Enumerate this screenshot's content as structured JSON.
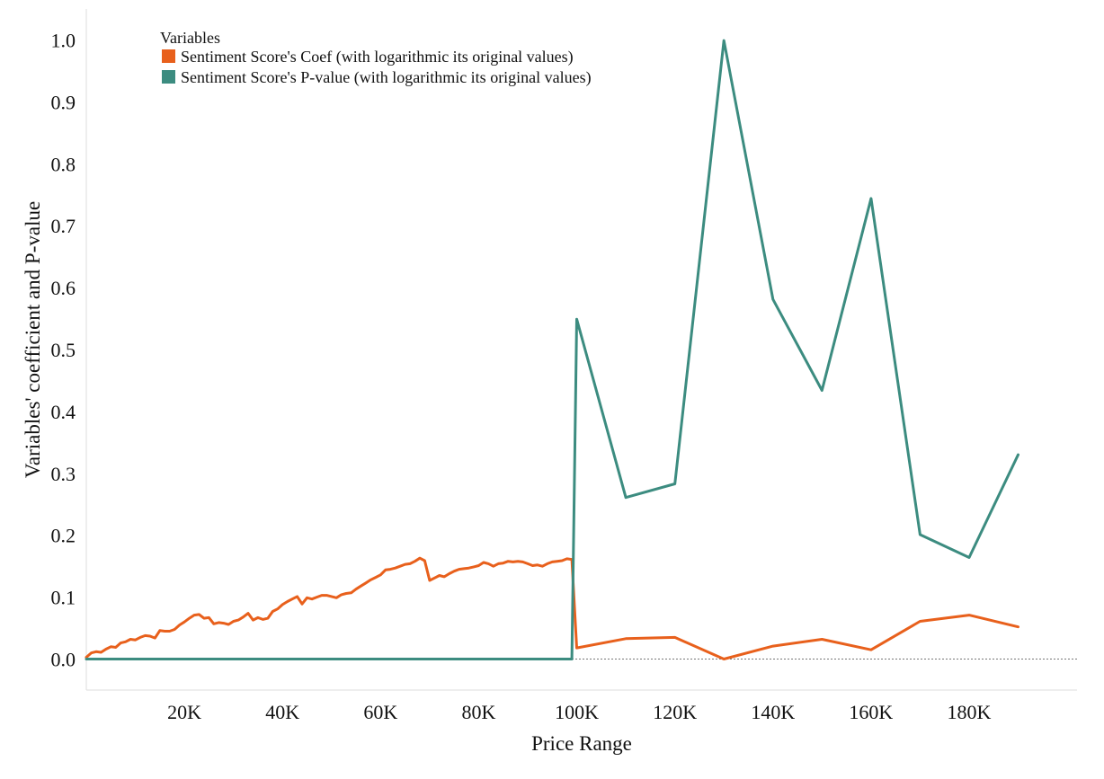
{
  "chart_data": {
    "type": "line",
    "title": "",
    "xlabel": "Price Range",
    "ylabel": "Variables' coefficient and P-value",
    "xlim": [
      0,
      202000
    ],
    "ylim": [
      -0.05,
      1.05
    ],
    "x_ticks": [
      20000,
      40000,
      60000,
      80000,
      100000,
      120000,
      140000,
      160000,
      180000
    ],
    "x_tick_labels": [
      "20K",
      "40K",
      "60K",
      "80K",
      "100K",
      "120K",
      "140K",
      "160K",
      "180K"
    ],
    "y_ticks": [
      0.0,
      0.1,
      0.2,
      0.3,
      0.4,
      0.5,
      0.6,
      0.7,
      0.8,
      0.9,
      1.0
    ],
    "y_tick_labels": [
      "0.0",
      "0.1",
      "0.2",
      "0.3",
      "0.4",
      "0.5",
      "0.6",
      "0.7",
      "0.8",
      "0.9",
      "1.0"
    ],
    "zero_line": true,
    "grid": false,
    "legend": {
      "title": "Variables",
      "position": "top-left"
    },
    "series": [
      {
        "name": "Sentiment Score's Coef (with logarithmic its original values)",
        "color": "#e8601c",
        "points": [
          [
            0,
            0.003
          ],
          [
            1000,
            0.01
          ],
          [
            2000,
            0.012
          ],
          [
            3000,
            0.011
          ],
          [
            4000,
            0.016
          ],
          [
            5000,
            0.02
          ],
          [
            6000,
            0.019
          ],
          [
            7000,
            0.026
          ],
          [
            8000,
            0.028
          ],
          [
            9000,
            0.032
          ],
          [
            10000,
            0.031
          ],
          [
            11000,
            0.035
          ],
          [
            12000,
            0.038
          ],
          [
            13000,
            0.037
          ],
          [
            14000,
            0.034
          ],
          [
            15000,
            0.046
          ],
          [
            16000,
            0.045
          ],
          [
            17000,
            0.045
          ],
          [
            18000,
            0.048
          ],
          [
            19000,
            0.055
          ],
          [
            20000,
            0.06
          ],
          [
            21000,
            0.066
          ],
          [
            22000,
            0.071
          ],
          [
            23000,
            0.072
          ],
          [
            24000,
            0.066
          ],
          [
            25000,
            0.067
          ],
          [
            26000,
            0.057
          ],
          [
            27000,
            0.059
          ],
          [
            28000,
            0.058
          ],
          [
            29000,
            0.056
          ],
          [
            30000,
            0.061
          ],
          [
            31000,
            0.063
          ],
          [
            32000,
            0.068
          ],
          [
            33000,
            0.074
          ],
          [
            34000,
            0.063
          ],
          [
            35000,
            0.067
          ],
          [
            36000,
            0.064
          ],
          [
            37000,
            0.066
          ],
          [
            38000,
            0.077
          ],
          [
            39000,
            0.081
          ],
          [
            40000,
            0.088
          ],
          [
            41000,
            0.093
          ],
          [
            42000,
            0.097
          ],
          [
            43000,
            0.101
          ],
          [
            44000,
            0.089
          ],
          [
            45000,
            0.099
          ],
          [
            46000,
            0.097
          ],
          [
            47000,
            0.1
          ],
          [
            48000,
            0.103
          ],
          [
            49000,
            0.103
          ],
          [
            50000,
            0.101
          ],
          [
            51000,
            0.099
          ],
          [
            52000,
            0.104
          ],
          [
            53000,
            0.106
          ],
          [
            54000,
            0.107
          ],
          [
            55000,
            0.113
          ],
          [
            56000,
            0.118
          ],
          [
            57000,
            0.123
          ],
          [
            58000,
            0.128
          ],
          [
            59000,
            0.132
          ],
          [
            60000,
            0.136
          ],
          [
            61000,
            0.144
          ],
          [
            62000,
            0.145
          ],
          [
            63000,
            0.147
          ],
          [
            64000,
            0.15
          ],
          [
            65000,
            0.153
          ],
          [
            66000,
            0.154
          ],
          [
            67000,
            0.158
          ],
          [
            68000,
            0.163
          ],
          [
            69000,
            0.159
          ],
          [
            70000,
            0.127
          ],
          [
            71000,
            0.131
          ],
          [
            72000,
            0.135
          ],
          [
            73000,
            0.133
          ],
          [
            74000,
            0.138
          ],
          [
            75000,
            0.142
          ],
          [
            76000,
            0.145
          ],
          [
            77000,
            0.146
          ],
          [
            78000,
            0.147
          ],
          [
            79000,
            0.149
          ],
          [
            80000,
            0.151
          ],
          [
            81000,
            0.156
          ],
          [
            82000,
            0.154
          ],
          [
            83000,
            0.15
          ],
          [
            84000,
            0.154
          ],
          [
            85000,
            0.155
          ],
          [
            86000,
            0.158
          ],
          [
            87000,
            0.157
          ],
          [
            88000,
            0.158
          ],
          [
            89000,
            0.157
          ],
          [
            90000,
            0.154
          ],
          [
            91000,
            0.151
          ],
          [
            92000,
            0.152
          ],
          [
            93000,
            0.15
          ],
          [
            94000,
            0.154
          ],
          [
            95000,
            0.157
          ],
          [
            96000,
            0.158
          ],
          [
            97000,
            0.159
          ],
          [
            98000,
            0.162
          ],
          [
            99000,
            0.161
          ],
          [
            100000,
            0.018
          ],
          [
            110000,
            0.033
          ],
          [
            120000,
            0.035
          ],
          [
            130000,
            0.0
          ],
          [
            140000,
            0.021
          ],
          [
            150000,
            0.032
          ],
          [
            160000,
            0.015
          ],
          [
            170000,
            0.061
          ],
          [
            180000,
            0.071
          ],
          [
            190000,
            0.052
          ]
        ]
      },
      {
        "name": "Sentiment Score's P-value (with logarithmic its original values)",
        "color": "#3c8c80",
        "points": [
          [
            0,
            0.0
          ],
          [
            99000,
            0.0
          ],
          [
            100000,
            0.549
          ],
          [
            110000,
            0.261
          ],
          [
            120000,
            0.283
          ],
          [
            130000,
            0.999
          ],
          [
            140000,
            0.581
          ],
          [
            150000,
            0.434
          ],
          [
            160000,
            0.744
          ],
          [
            170000,
            0.201
          ],
          [
            180000,
            0.164
          ],
          [
            190000,
            0.33
          ]
        ]
      }
    ]
  }
}
